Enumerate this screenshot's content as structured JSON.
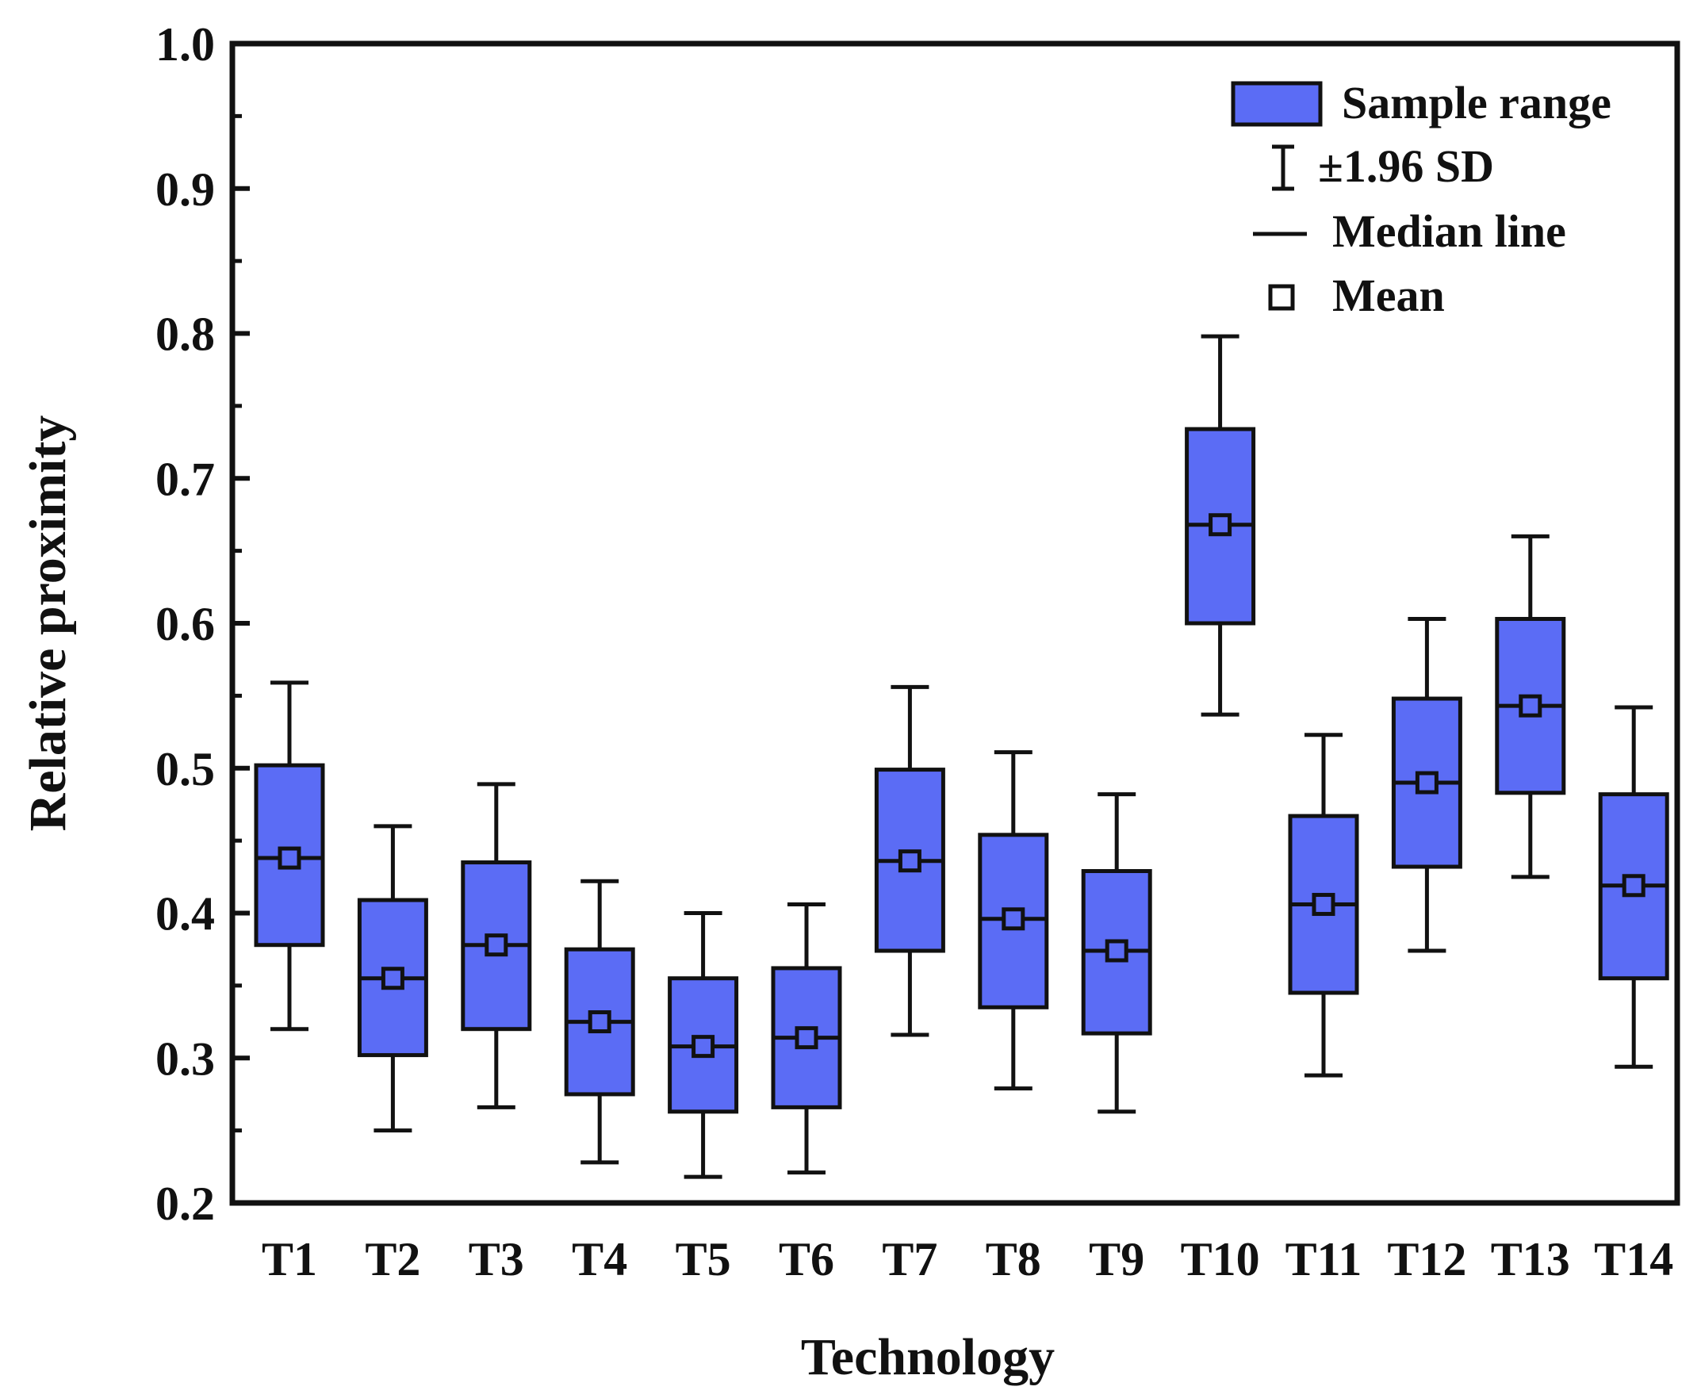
{
  "chart_data": {
    "type": "box",
    "title": "",
    "xlabel": "Technology",
    "ylabel": "Relative proximity",
    "ylim": [
      0.2,
      1.0
    ],
    "yticks": [
      "0.2",
      "0.3",
      "0.4",
      "0.5",
      "0.6",
      "0.7",
      "0.8",
      "0.9",
      "1.0"
    ],
    "categories": [
      "T1",
      "T2",
      "T3",
      "T4",
      "T5",
      "T6",
      "T7",
      "T8",
      "T9",
      "T10",
      "T11",
      "T12",
      "T13",
      "T14"
    ],
    "series": [
      {
        "name": "Relative proximity",
        "whisker_low": [
          0.32,
          0.25,
          0.266,
          0.228,
          0.218,
          0.221,
          0.316,
          0.279,
          0.263,
          0.537,
          0.288,
          0.374,
          0.425,
          0.294
        ],
        "box_low": [
          0.378,
          0.302,
          0.32,
          0.275,
          0.263,
          0.266,
          0.374,
          0.335,
          0.317,
          0.6,
          0.345,
          0.432,
          0.483,
          0.355
        ],
        "median": [
          0.438,
          0.355,
          0.378,
          0.325,
          0.308,
          0.314,
          0.436,
          0.396,
          0.374,
          0.668,
          0.406,
          0.49,
          0.543,
          0.419
        ],
        "mean": [
          0.438,
          0.355,
          0.378,
          0.325,
          0.308,
          0.314,
          0.436,
          0.396,
          0.374,
          0.668,
          0.406,
          0.49,
          0.543,
          0.419
        ],
        "box_high": [
          0.502,
          0.409,
          0.435,
          0.375,
          0.355,
          0.362,
          0.499,
          0.454,
          0.429,
          0.734,
          0.467,
          0.548,
          0.603,
          0.482
        ],
        "whisker_high": [
          0.559,
          0.46,
          0.489,
          0.422,
          0.4,
          0.406,
          0.556,
          0.511,
          0.482,
          0.798,
          0.523,
          0.603,
          0.66,
          0.542
        ]
      }
    ],
    "legend": {
      "position": "top-right",
      "entries": [
        {
          "symbol": "box",
          "label": "Sample range"
        },
        {
          "symbol": "errorbar",
          "label": "±1.96 SD"
        },
        {
          "symbol": "line",
          "label": "Median line"
        },
        {
          "symbol": "square",
          "label": "Mean"
        }
      ]
    },
    "colors": {
      "box_fill": "#5b6cf5",
      "stroke": "#111111",
      "background": "#ffffff"
    }
  }
}
